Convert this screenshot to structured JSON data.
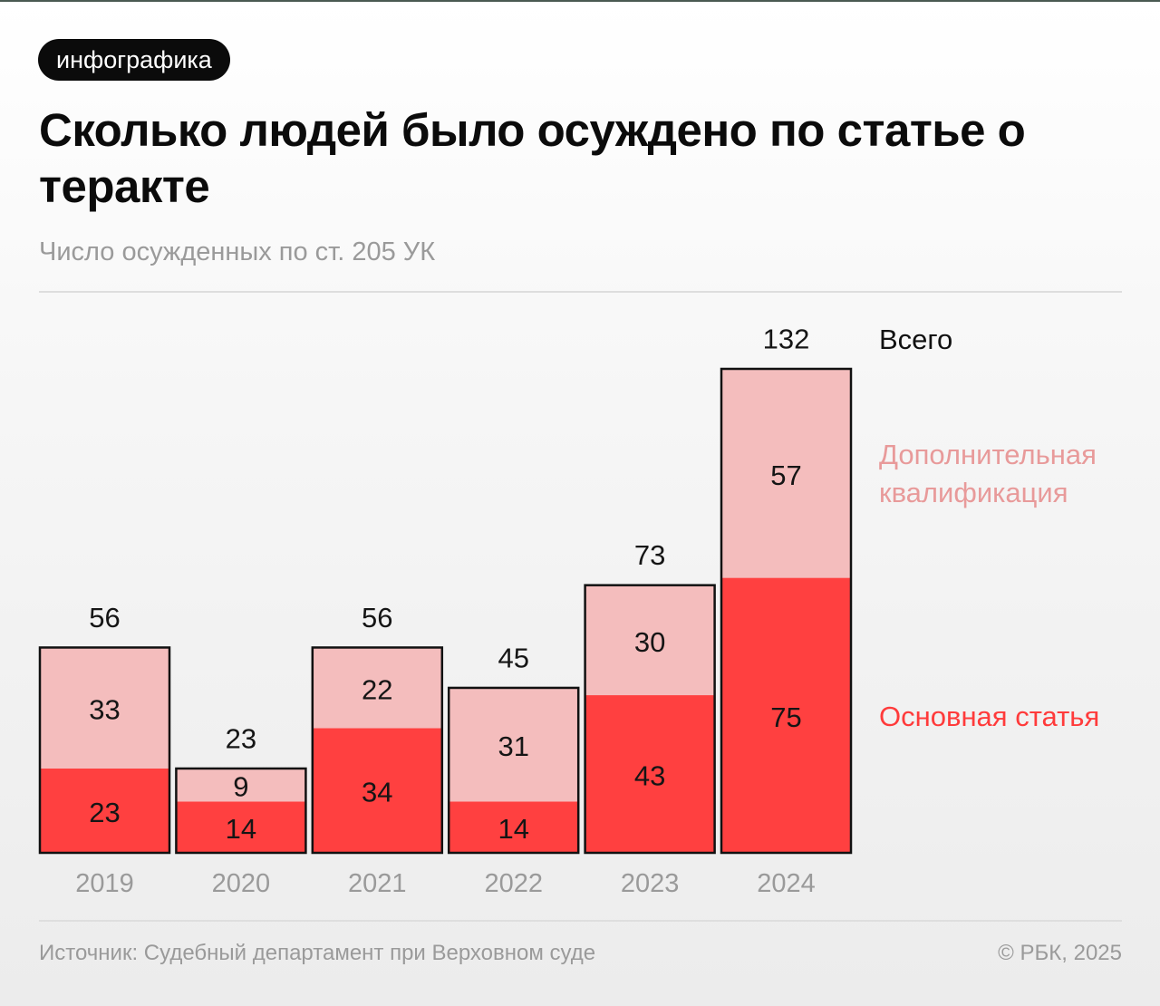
{
  "badge": "инфографика",
  "title": "Сколько людей было осуждено по статье о теракте",
  "subtitle": "Число осужденных по ст. 205 УК",
  "legend": {
    "total": "Всего",
    "extra": "Дополнительная квалификация",
    "main": "Основная статья"
  },
  "footer": {
    "source": "Источник: Судебный департамент при Верховном суде",
    "copyright": "© РБК, 2025"
  },
  "colors": {
    "main": "#ff4040",
    "extra": "#f4bdbd",
    "outline": "#111111"
  },
  "chart_data": {
    "type": "bar",
    "stacked": true,
    "categories": [
      "2019",
      "2020",
      "2021",
      "2022",
      "2023",
      "2024"
    ],
    "series": [
      {
        "name": "Основная статья",
        "values": [
          23,
          14,
          34,
          14,
          43,
          75
        ]
      },
      {
        "name": "Дополнительная квалификация",
        "values": [
          33,
          9,
          22,
          31,
          30,
          57
        ]
      }
    ],
    "totals": [
      56,
      23,
      56,
      45,
      73,
      132
    ],
    "title": "Сколько людей было осуждено по статье о теракте",
    "subtitle": "Число осужденных по ст. 205 УК",
    "xlabel": "",
    "ylabel": "",
    "ylim": [
      0,
      132
    ],
    "grid": false,
    "legend_position": "right"
  }
}
